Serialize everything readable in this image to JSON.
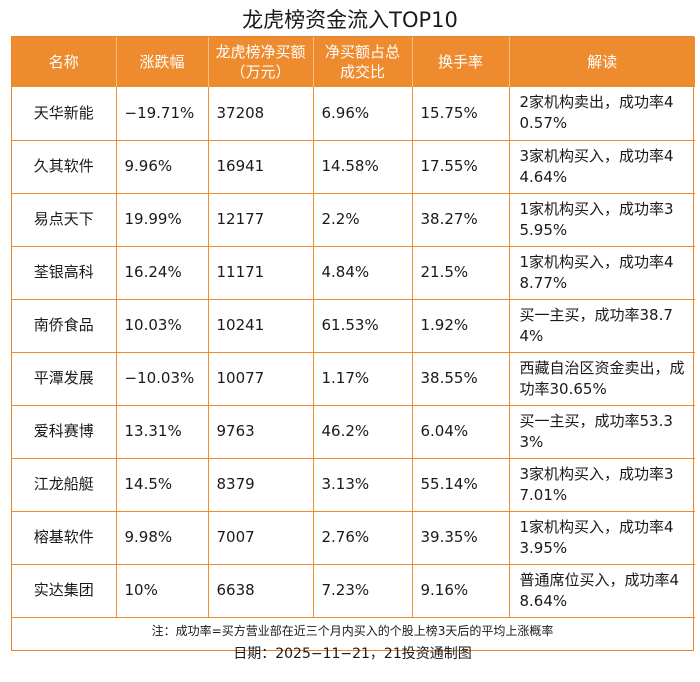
{
  "title": "龙虎榜资金流入TOP10",
  "table": {
    "headers": [
      "名称",
      "涨跌幅",
      "龙虎榜净买额（万元）",
      "净买额占总成交比",
      "换手率",
      "解读"
    ],
    "rows": [
      {
        "name": "天华新能",
        "change": "−19.71%",
        "net_buy": "37208",
        "ratio": "6.96%",
        "turnover": "15.75%",
        "interp": "2家机构卖出，成功率40.57%"
      },
      {
        "name": "久其软件",
        "change": "9.96%",
        "net_buy": "16941",
        "ratio": "14.58%",
        "turnover": "17.55%",
        "interp": "3家机构买入，成功率44.64%"
      },
      {
        "name": "易点天下",
        "change": "19.99%",
        "net_buy": "12177",
        "ratio": "2.2%",
        "turnover": "38.27%",
        "interp": "1家机构买入，成功率35.95%"
      },
      {
        "name": "荃银高科",
        "change": "16.24%",
        "net_buy": "11171",
        "ratio": "4.84%",
        "turnover": "21.5%",
        "interp": "1家机构买入，成功率48.77%"
      },
      {
        "name": "南侨食品",
        "change": "10.03%",
        "net_buy": "10241",
        "ratio": "61.53%",
        "turnover": "1.92%",
        "interp": "买一主买，成功率38.74%"
      },
      {
        "name": "平潭发展",
        "change": "−10.03%",
        "net_buy": "10077",
        "ratio": "1.17%",
        "turnover": "38.55%",
        "interp": "西藏自治区资金卖出，成功率30.65%"
      },
      {
        "name": "爱科赛博",
        "change": "13.31%",
        "net_buy": "9763",
        "ratio": "46.2%",
        "turnover": "6.04%",
        "interp": "买一主买，成功率53.33%"
      },
      {
        "name": "江龙船艇",
        "change": "14.5%",
        "net_buy": "8379",
        "ratio": "3.13%",
        "turnover": "55.14%",
        "interp": "3家机构买入，成功率37.01%"
      },
      {
        "name": "榕基软件",
        "change": "9.98%",
        "net_buy": "7007",
        "ratio": "2.76%",
        "turnover": "39.35%",
        "interp": "1家机构买入，成功率43.95%"
      },
      {
        "name": "实达集团",
        "change": "10%",
        "net_buy": "6638",
        "ratio": "7.23%",
        "turnover": "9.16%",
        "interp": "普通席位买入，成功率48.64%"
      }
    ]
  },
  "note": "注：成功率=买方营业部在近三个月内买入的个股上榜3天后的平均上涨概率",
  "date_line": "日期：2025−11−21，21投资通制图",
  "colors": {
    "header_bg": "#ef8b2f",
    "border": "#ef8b2f",
    "header_text": "#ffffff"
  }
}
